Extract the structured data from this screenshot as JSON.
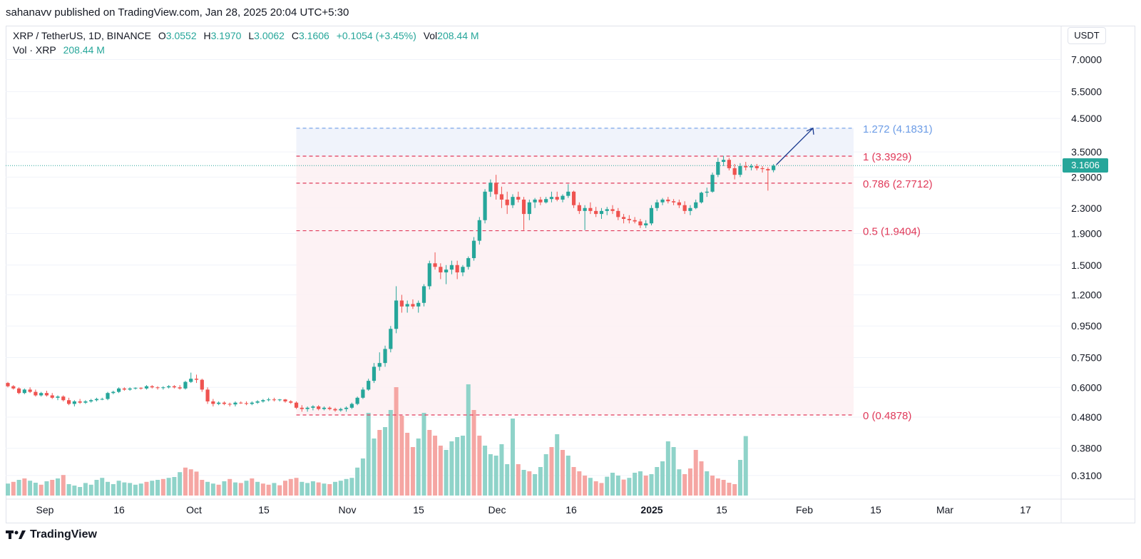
{
  "header": {
    "publisher": "sahanavv published on TradingView.com, Jan 28, 2025 20:04 UTC+5:30"
  },
  "legend": {
    "symbol": "XRP / TetherUS, 1D, BINANCE",
    "open_label": "O",
    "open": "3.0552",
    "high_label": "H",
    "high": "3.1970",
    "low_label": "L",
    "low": "3.0062",
    "close_label": "C",
    "close": "3.1606",
    "change": "+0.1054 (+3.45%)",
    "vol_label": "Vol",
    "vol": "208.44 M",
    "vol_line_label": "Vol · XRP",
    "vol_line_value": "208.44 M"
  },
  "currency_button": "USDT",
  "last_price": "3.1606",
  "footer": {
    "brand": "TradingView"
  },
  "colors": {
    "up": "#26a69a",
    "down": "#ef5350",
    "fib_red": "#e03a5a",
    "fib_blue": "#6c9ce6",
    "arrow": "#1a3a8f"
  },
  "chart_data": {
    "type": "candlestick",
    "title": "XRP / TetherUS, 1D, BINANCE",
    "y_scale": "log",
    "y_ticks": [
      "7.0000",
      "5.5000",
      "4.5000",
      "3.5000",
      "2.9000",
      "2.3000",
      "1.9000",
      "1.5000",
      "1.2000",
      "0.9500",
      "0.7500",
      "0.6000",
      "0.4800",
      "0.3800",
      "0.3100"
    ],
    "x_ticks": [
      "Sep",
      "16",
      "Oct",
      "15",
      "Nov",
      "15",
      "Dec",
      "16",
      "2025",
      "15",
      "Feb",
      "15",
      "Mar",
      "17"
    ],
    "candles": [
      [
        0.62,
        0.625,
        0.6,
        0.605
      ],
      [
        0.605,
        0.61,
        0.59,
        0.595
      ],
      [
        0.595,
        0.6,
        0.57,
        0.575
      ],
      [
        0.575,
        0.595,
        0.57,
        0.59
      ],
      [
        0.59,
        0.6,
        0.575,
        0.58
      ],
      [
        0.58,
        0.59,
        0.56,
        0.565
      ],
      [
        0.565,
        0.58,
        0.56,
        0.575
      ],
      [
        0.575,
        0.585,
        0.56,
        0.565
      ],
      [
        0.565,
        0.575,
        0.55,
        0.555
      ],
      [
        0.555,
        0.565,
        0.545,
        0.56
      ],
      [
        0.56,
        0.565,
        0.54,
        0.545
      ],
      [
        0.545,
        0.555,
        0.525,
        0.53
      ],
      [
        0.53,
        0.545,
        0.52,
        0.54
      ],
      [
        0.54,
        0.55,
        0.53,
        0.535
      ],
      [
        0.535,
        0.545,
        0.53,
        0.54
      ],
      [
        0.54,
        0.55,
        0.535,
        0.545
      ],
      [
        0.545,
        0.555,
        0.54,
        0.55
      ],
      [
        0.55,
        0.555,
        0.545,
        0.55
      ],
      [
        0.55,
        0.58,
        0.545,
        0.575
      ],
      [
        0.575,
        0.585,
        0.57,
        0.58
      ],
      [
        0.58,
        0.6,
        0.575,
        0.595
      ],
      [
        0.595,
        0.6,
        0.585,
        0.59
      ],
      [
        0.59,
        0.6,
        0.585,
        0.595
      ],
      [
        0.595,
        0.6,
        0.59,
        0.598
      ],
      [
        0.598,
        0.6,
        0.59,
        0.595
      ],
      [
        0.595,
        0.61,
        0.59,
        0.605
      ],
      [
        0.605,
        0.61,
        0.595,
        0.6
      ],
      [
        0.6,
        0.605,
        0.59,
        0.598
      ],
      [
        0.598,
        0.605,
        0.59,
        0.6
      ],
      [
        0.6,
        0.61,
        0.595,
        0.605
      ],
      [
        0.605,
        0.61,
        0.595,
        0.6
      ],
      [
        0.6,
        0.61,
        0.59,
        0.595
      ],
      [
        0.595,
        0.63,
        0.59,
        0.625
      ],
      [
        0.625,
        0.67,
        0.62,
        0.64
      ],
      [
        0.64,
        0.66,
        0.62,
        0.635
      ],
      [
        0.635,
        0.64,
        0.58,
        0.59
      ],
      [
        0.59,
        0.6,
        0.53,
        0.54
      ],
      [
        0.54,
        0.55,
        0.52,
        0.53
      ],
      [
        0.53,
        0.54,
        0.525,
        0.535
      ],
      [
        0.535,
        0.54,
        0.525,
        0.53
      ],
      [
        0.53,
        0.535,
        0.52,
        0.528
      ],
      [
        0.528,
        0.54,
        0.52,
        0.535
      ],
      [
        0.535,
        0.54,
        0.53,
        0.533
      ],
      [
        0.533,
        0.54,
        0.525,
        0.53
      ],
      [
        0.53,
        0.54,
        0.525,
        0.535
      ],
      [
        0.535,
        0.545,
        0.53,
        0.54
      ],
      [
        0.54,
        0.55,
        0.535,
        0.545
      ],
      [
        0.545,
        0.555,
        0.54,
        0.548
      ],
      [
        0.548,
        0.555,
        0.54,
        0.545
      ],
      [
        0.545,
        0.55,
        0.54,
        0.548
      ],
      [
        0.548,
        0.55,
        0.535,
        0.54
      ],
      [
        0.54,
        0.545,
        0.53,
        0.535
      ],
      [
        0.535,
        0.54,
        0.51,
        0.515
      ],
      [
        0.515,
        0.525,
        0.5,
        0.51
      ],
      [
        0.51,
        0.52,
        0.5,
        0.515
      ],
      [
        0.515,
        0.525,
        0.505,
        0.52
      ],
      [
        0.52,
        0.525,
        0.505,
        0.51
      ],
      [
        0.51,
        0.52,
        0.505,
        0.515
      ],
      [
        0.515,
        0.52,
        0.505,
        0.51
      ],
      [
        0.51,
        0.515,
        0.5,
        0.505
      ],
      [
        0.505,
        0.515,
        0.5,
        0.51
      ],
      [
        0.51,
        0.52,
        0.5,
        0.515
      ],
      [
        0.515,
        0.535,
        0.51,
        0.53
      ],
      [
        0.53,
        0.56,
        0.525,
        0.555
      ],
      [
        0.555,
        0.6,
        0.55,
        0.59
      ],
      [
        0.59,
        0.64,
        0.585,
        0.63
      ],
      [
        0.63,
        0.72,
        0.62,
        0.7
      ],
      [
        0.7,
        0.78,
        0.68,
        0.72
      ],
      [
        0.72,
        0.82,
        0.7,
        0.8
      ],
      [
        0.8,
        0.95,
        0.78,
        0.93
      ],
      [
        0.93,
        1.28,
        0.9,
        1.15
      ],
      [
        1.15,
        1.2,
        1.05,
        1.1
      ],
      [
        1.1,
        1.15,
        1.05,
        1.12
      ],
      [
        1.12,
        1.16,
        1.08,
        1.1
      ],
      [
        1.1,
        1.15,
        1.05,
        1.13
      ],
      [
        1.13,
        1.3,
        1.1,
        1.28
      ],
      [
        1.28,
        1.55,
        1.25,
        1.52
      ],
      [
        1.52,
        1.65,
        1.45,
        1.48
      ],
      [
        1.48,
        1.52,
        1.35,
        1.42
      ],
      [
        1.42,
        1.5,
        1.3,
        1.45
      ],
      [
        1.45,
        1.55,
        1.4,
        1.5
      ],
      [
        1.5,
        1.55,
        1.35,
        1.42
      ],
      [
        1.42,
        1.5,
        1.38,
        1.48
      ],
      [
        1.48,
        1.6,
        1.45,
        1.58
      ],
      [
        1.58,
        1.85,
        1.55,
        1.8
      ],
      [
        1.8,
        2.15,
        1.75,
        2.1
      ],
      [
        2.1,
        2.65,
        2.05,
        2.6
      ],
      [
        2.6,
        2.85,
        2.5,
        2.78
      ],
      [
        2.78,
        2.95,
        2.45,
        2.55
      ],
      [
        2.55,
        2.7,
        2.3,
        2.45
      ],
      [
        2.45,
        2.6,
        2.2,
        2.35
      ],
      [
        2.35,
        2.55,
        2.3,
        2.5
      ],
      [
        2.5,
        2.6,
        2.4,
        2.45
      ],
      [
        2.45,
        2.5,
        1.95,
        2.2
      ],
      [
        2.2,
        2.45,
        2.1,
        2.4
      ],
      [
        2.4,
        2.48,
        2.3,
        2.45
      ],
      [
        2.45,
        2.5,
        2.35,
        2.4
      ],
      [
        2.4,
        2.5,
        2.38,
        2.46
      ],
      [
        2.46,
        2.6,
        2.4,
        2.5
      ],
      [
        2.5,
        2.6,
        2.42,
        2.45
      ],
      [
        2.45,
        2.55,
        2.4,
        2.52
      ],
      [
        2.52,
        2.75,
        2.48,
        2.6
      ],
      [
        2.6,
        2.62,
        2.3,
        2.35
      ],
      [
        2.35,
        2.4,
        2.2,
        2.25
      ],
      [
        2.25,
        2.35,
        1.95,
        2.3
      ],
      [
        2.3,
        2.4,
        2.2,
        2.25
      ],
      [
        2.25,
        2.32,
        2.15,
        2.2
      ],
      [
        2.2,
        2.3,
        2.12,
        2.25
      ],
      [
        2.25,
        2.32,
        2.18,
        2.28
      ],
      [
        2.28,
        2.35,
        2.2,
        2.25
      ],
      [
        2.25,
        2.3,
        2.1,
        2.15
      ],
      [
        2.15,
        2.2,
        2.05,
        2.12
      ],
      [
        2.12,
        2.18,
        2.05,
        2.1
      ],
      [
        2.1,
        2.15,
        2.05,
        2.08
      ],
      [
        2.08,
        2.12,
        1.98,
        2.02
      ],
      [
        2.02,
        2.1,
        1.98,
        2.05
      ],
      [
        2.05,
        2.35,
        2.02,
        2.3
      ],
      [
        2.3,
        2.45,
        2.25,
        2.4
      ],
      [
        2.4,
        2.48,
        2.35,
        2.45
      ],
      [
        2.45,
        2.5,
        2.38,
        2.42
      ],
      [
        2.42,
        2.46,
        2.35,
        2.4
      ],
      [
        2.4,
        2.45,
        2.3,
        2.35
      ],
      [
        2.35,
        2.42,
        2.2,
        2.25
      ],
      [
        2.25,
        2.35,
        2.18,
        2.3
      ],
      [
        2.3,
        2.45,
        2.28,
        2.4
      ],
      [
        2.4,
        2.6,
        2.38,
        2.58
      ],
      [
        2.58,
        2.68,
        2.5,
        2.6
      ],
      [
        2.6,
        3.0,
        2.58,
        2.95
      ],
      [
        2.95,
        3.35,
        2.9,
        3.25
      ],
      [
        3.25,
        3.4,
        3.15,
        3.3
      ],
      [
        3.3,
        3.35,
        3.05,
        3.1
      ],
      [
        3.1,
        3.2,
        2.85,
        2.95
      ],
      [
        2.95,
        3.22,
        2.9,
        3.15
      ],
      [
        3.15,
        3.25,
        3.05,
        3.12
      ],
      [
        3.12,
        3.2,
        3.05,
        3.15
      ],
      [
        3.15,
        3.2,
        3.05,
        3.1
      ],
      [
        3.1,
        3.15,
        3.0,
        3.08
      ],
      [
        3.08,
        3.12,
        2.62,
        3.05
      ],
      [
        3.0552,
        3.197,
        3.0062,
        3.1606
      ]
    ],
    "volume": [
      [
        42,
        "up"
      ],
      [
        48,
        "down"
      ],
      [
        55,
        "up"
      ],
      [
        60,
        "down"
      ],
      [
        52,
        "up"
      ],
      [
        45,
        "up"
      ],
      [
        38,
        "down"
      ],
      [
        50,
        "up"
      ],
      [
        55,
        "down"
      ],
      [
        60,
        "up"
      ],
      [
        72,
        "down"
      ],
      [
        40,
        "up"
      ],
      [
        35,
        "up"
      ],
      [
        30,
        "up"
      ],
      [
        44,
        "up"
      ],
      [
        38,
        "up"
      ],
      [
        55,
        "up"
      ],
      [
        62,
        "up"
      ],
      [
        48,
        "up"
      ],
      [
        40,
        "up"
      ],
      [
        52,
        "up"
      ],
      [
        46,
        "up"
      ],
      [
        44,
        "up"
      ],
      [
        38,
        "up"
      ],
      [
        42,
        "up"
      ],
      [
        48,
        "down"
      ],
      [
        52,
        "up"
      ],
      [
        55,
        "up"
      ],
      [
        58,
        "down"
      ],
      [
        62,
        "up"
      ],
      [
        65,
        "up"
      ],
      [
        82,
        "up"
      ],
      [
        98,
        "down"
      ],
      [
        92,
        "down"
      ],
      [
        84,
        "down"
      ],
      [
        55,
        "down"
      ],
      [
        48,
        "up"
      ],
      [
        42,
        "up"
      ],
      [
        38,
        "down"
      ],
      [
        50,
        "up"
      ],
      [
        58,
        "down"
      ],
      [
        46,
        "up"
      ],
      [
        44,
        "down"
      ],
      [
        52,
        "up"
      ],
      [
        60,
        "down"
      ],
      [
        48,
        "up"
      ],
      [
        42,
        "down"
      ],
      [
        38,
        "down"
      ],
      [
        44,
        "up"
      ],
      [
        36,
        "down"
      ],
      [
        52,
        "down"
      ],
      [
        58,
        "down"
      ],
      [
        62,
        "down"
      ],
      [
        48,
        "up"
      ],
      [
        44,
        "up"
      ],
      [
        50,
        "up"
      ],
      [
        46,
        "down"
      ],
      [
        42,
        "up"
      ],
      [
        40,
        "down"
      ],
      [
        48,
        "up"
      ],
      [
        52,
        "up"
      ],
      [
        58,
        "up"
      ],
      [
        62,
        "up"
      ],
      [
        98,
        "up"
      ],
      [
        130,
        "up"
      ],
      [
        290,
        "up"
      ],
      [
        200,
        "up"
      ],
      [
        230,
        "down"
      ],
      [
        240,
        "up"
      ],
      [
        300,
        "up"
      ],
      [
        380,
        "down"
      ],
      [
        280,
        "down"
      ],
      [
        220,
        "down"
      ],
      [
        170,
        "down"
      ],
      [
        200,
        "up"
      ],
      [
        290,
        "up"
      ],
      [
        230,
        "down"
      ],
      [
        210,
        "down"
      ],
      [
        175,
        "down"
      ],
      [
        160,
        "up"
      ],
      [
        190,
        "up"
      ],
      [
        205,
        "up"
      ],
      [
        210,
        "up"
      ],
      [
        390,
        "up"
      ],
      [
        300,
        "down"
      ],
      [
        210,
        "down"
      ],
      [
        175,
        "up"
      ],
      [
        145,
        "up"
      ],
      [
        140,
        "up"
      ],
      [
        180,
        "up"
      ],
      [
        110,
        "up"
      ],
      [
        270,
        "up"
      ],
      [
        110,
        "down"
      ],
      [
        90,
        "up"
      ],
      [
        85,
        "down"
      ],
      [
        75,
        "up"
      ],
      [
        100,
        "up"
      ],
      [
        145,
        "up"
      ],
      [
        170,
        "down"
      ],
      [
        215,
        "up"
      ],
      [
        160,
        "down"
      ],
      [
        140,
        "up"
      ],
      [
        100,
        "down"
      ],
      [
        85,
        "down"
      ],
      [
        70,
        "down"
      ],
      [
        62,
        "up"
      ],
      [
        50,
        "down"
      ],
      [
        44,
        "down"
      ],
      [
        66,
        "up"
      ],
      [
        80,
        "up"
      ],
      [
        70,
        "up"
      ],
      [
        56,
        "down"
      ],
      [
        62,
        "up"
      ],
      [
        80,
        "up"
      ],
      [
        85,
        "up"
      ],
      [
        70,
        "down"
      ],
      [
        75,
        "up"
      ],
      [
        100,
        "up"
      ],
      [
        120,
        "up"
      ],
      [
        190,
        "up"
      ],
      [
        170,
        "up"
      ],
      [
        92,
        "up"
      ],
      [
        75,
        "down"
      ],
      [
        95,
        "down"
      ],
      [
        160,
        "down"
      ],
      [
        120,
        "down"
      ],
      [
        85,
        "up"
      ],
      [
        70,
        "down"
      ],
      [
        60,
        "down"
      ],
      [
        55,
        "down"
      ],
      [
        45,
        "down"
      ],
      [
        40,
        "down"
      ],
      [
        125,
        "up"
      ],
      [
        208.44,
        "up"
      ]
    ],
    "fib_levels": [
      {
        "label": "1.272 (4.1831)",
        "price": 4.1831,
        "color": "#6c9ce6"
      },
      {
        "label": "1 (3.3929)",
        "price": 3.3929,
        "color": "#e03a5a"
      },
      {
        "label": "0.786 (2.7712)",
        "price": 2.7712,
        "color": "#e03a5a"
      },
      {
        "label": "0.5 (1.9404)",
        "price": 1.9404,
        "color": "#e03a5a"
      },
      {
        "label": "0 (0.4878)",
        "price": 0.4878,
        "color": "#e03a5a"
      }
    ],
    "last_price": 3.1606,
    "projection_target": 4.1831
  }
}
